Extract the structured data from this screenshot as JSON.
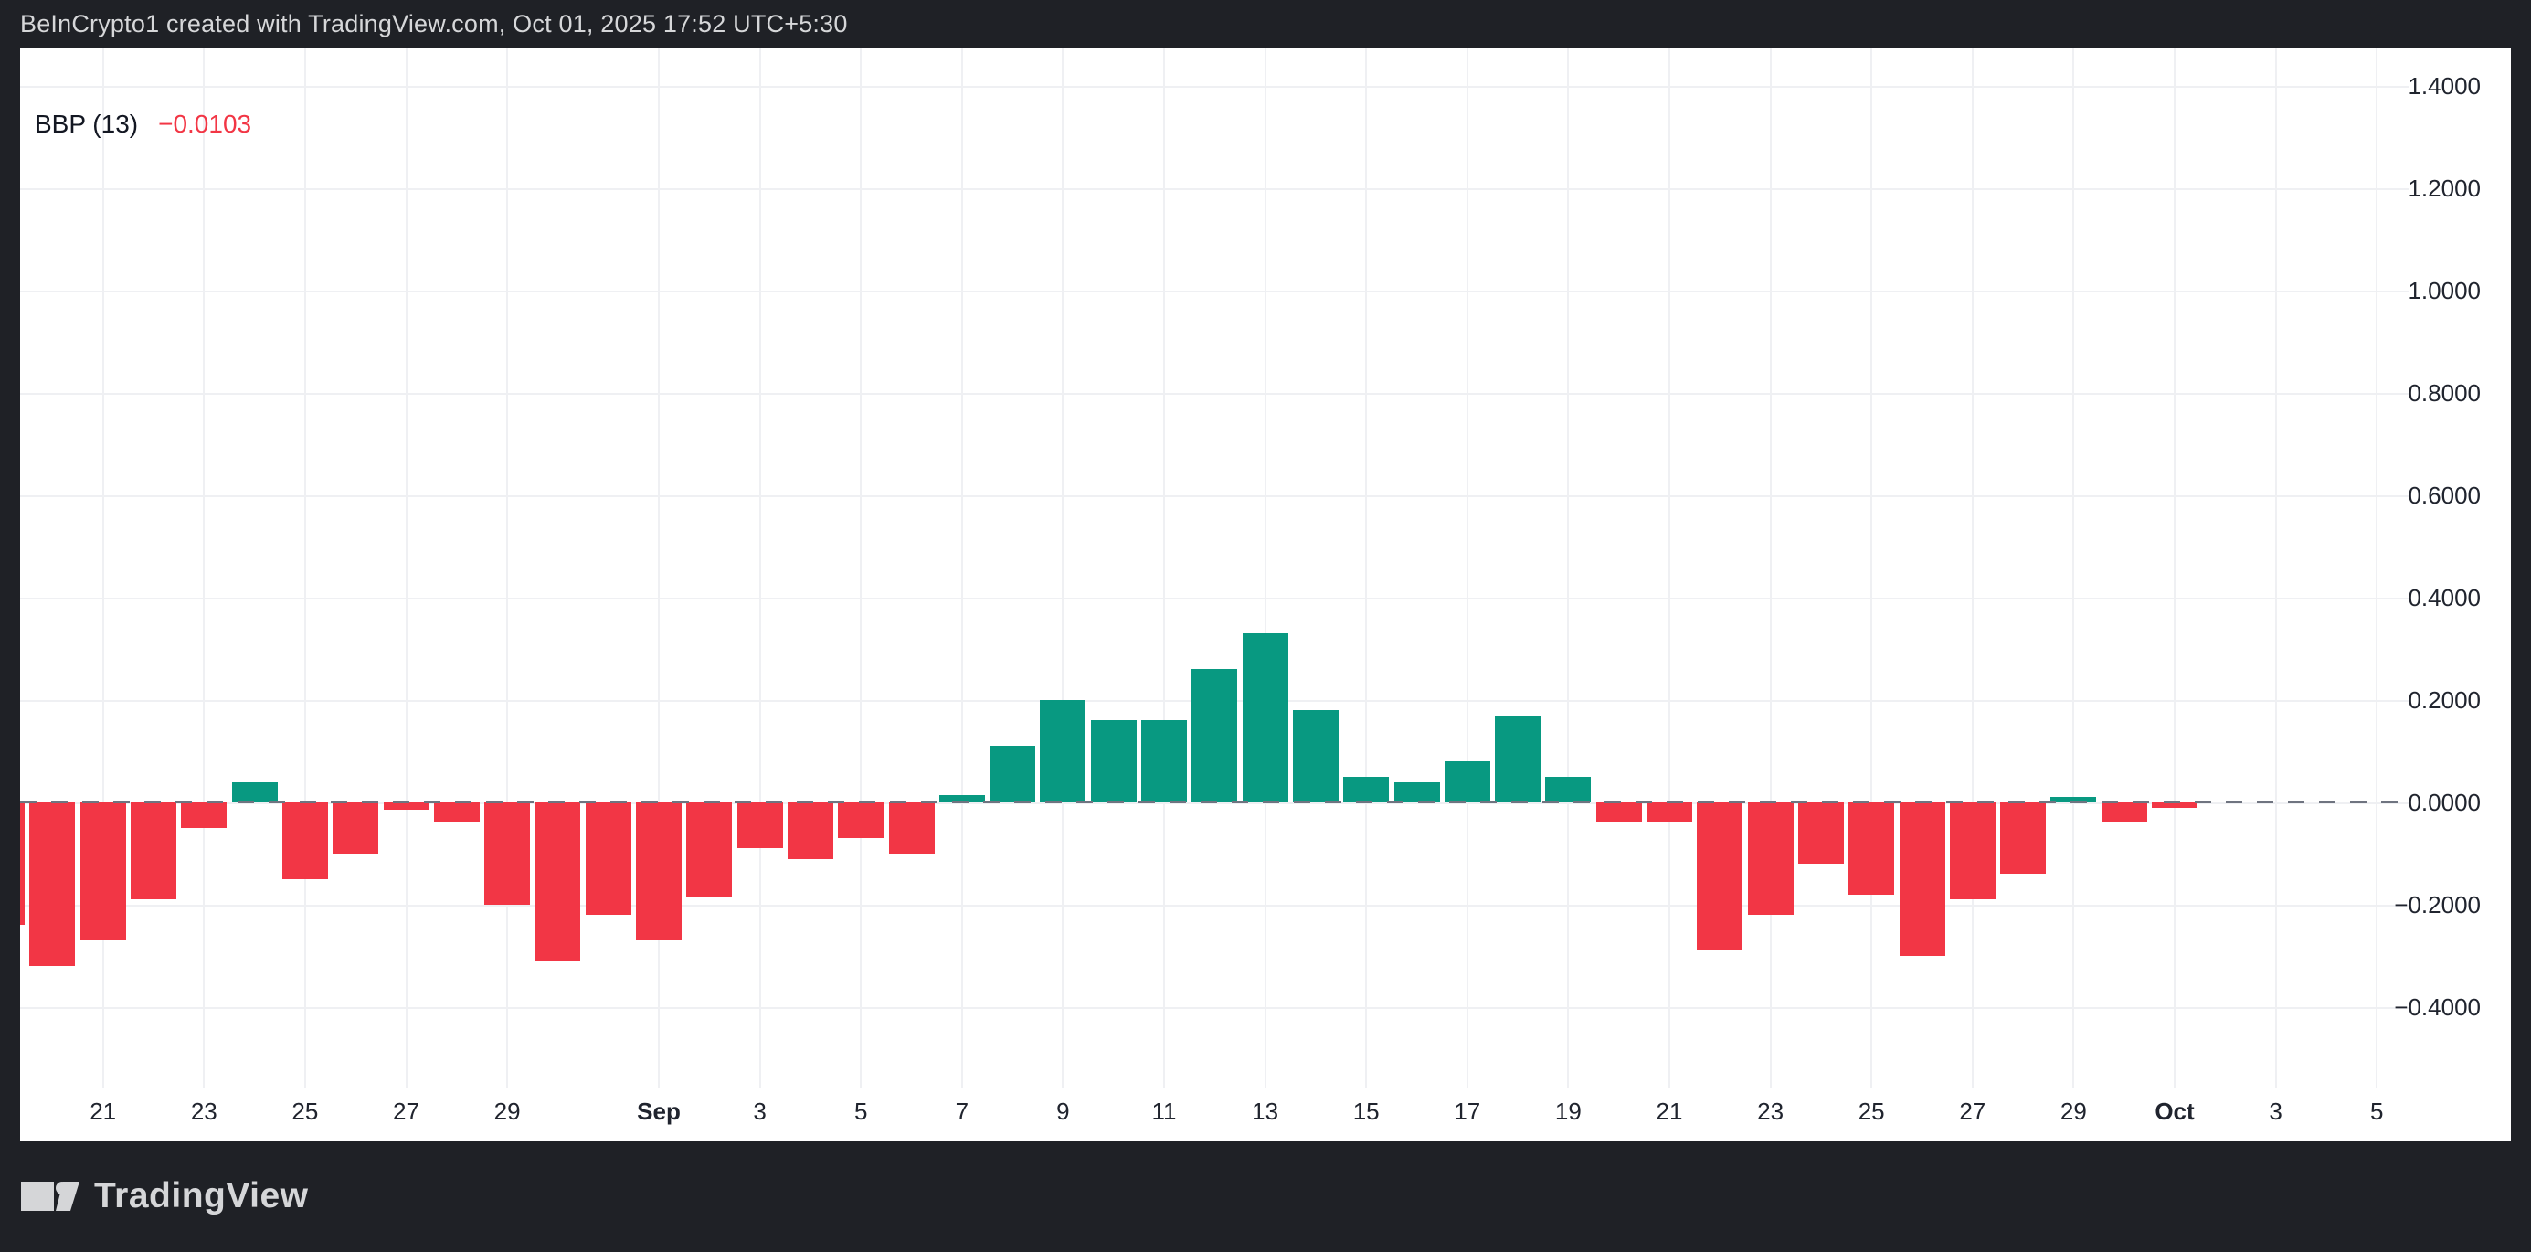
{
  "header": {
    "attribution": "BeInCrypto1 created with TradingView.com, Oct 01, 2025 17:52 UTC+5:30"
  },
  "indicator": {
    "name_label": "BBP (13)",
    "value_label": "−0.0103"
  },
  "footer": {
    "brand": "TradingView"
  },
  "colors": {
    "up": "#089981",
    "down": "#f23645",
    "dashed_zero_line": "#6f7480",
    "grid": "#eff0f3",
    "panel_bg": "#ffffff",
    "frame_bg": "#1f2126",
    "axis_text": "#20242e",
    "header_text": "#d6d7d9",
    "indicator_value_text": "#f23645"
  },
  "chart_data": {
    "type": "bar",
    "title": "BBP (13)",
    "current_value": -0.0103,
    "ylabel": "",
    "xlabel": "",
    "ylim": [
      -0.55,
      1.47
    ],
    "grid": true,
    "zero_line": "dashed",
    "up_color": "#089981",
    "down_color": "#f23645",
    "x": [
      "Aug 19",
      "Aug 20",
      "Aug 21",
      "Aug 22",
      "Aug 23",
      "Aug 24",
      "Aug 25",
      "Aug 26",
      "Aug 27",
      "Aug 28",
      "Aug 29",
      "Aug 30",
      "Aug 31",
      "Sep 1",
      "Sep 2",
      "Sep 3",
      "Sep 4",
      "Sep 5",
      "Sep 6",
      "Sep 7",
      "Sep 8",
      "Sep 9",
      "Sep 10",
      "Sep 11",
      "Sep 12",
      "Sep 13",
      "Sep 14",
      "Sep 15",
      "Sep 16",
      "Sep 17",
      "Sep 18",
      "Sep 19",
      "Sep 20",
      "Sep 21",
      "Sep 22",
      "Sep 23",
      "Sep 24",
      "Sep 25",
      "Sep 26",
      "Sep 27",
      "Sep 28",
      "Sep 29",
      "Sep 30",
      "Oct 1"
    ],
    "values": [
      -0.24,
      -0.32,
      -0.27,
      -0.19,
      -0.05,
      0.04,
      -0.15,
      -0.1,
      -0.015,
      -0.04,
      -0.2,
      -0.31,
      -0.22,
      -0.27,
      -0.185,
      -0.09,
      -0.11,
      -0.07,
      -0.1,
      0.015,
      0.11,
      0.2,
      0.16,
      0.16,
      0.26,
      0.33,
      0.18,
      0.05,
      0.04,
      0.08,
      0.17,
      0.05,
      -0.04,
      -0.04,
      -0.29,
      -0.22,
      -0.12,
      -0.18,
      -0.3,
      -0.19,
      -0.14,
      0.01,
      -0.04,
      -0.0103
    ],
    "future_empty_days": 4,
    "y_ticks": [
      {
        "v": 1.4,
        "label": "1.4000"
      },
      {
        "v": 1.2,
        "label": "1.2000"
      },
      {
        "v": 1.0,
        "label": "1.0000"
      },
      {
        "v": 0.8,
        "label": "0.8000"
      },
      {
        "v": 0.6,
        "label": "0.6000"
      },
      {
        "v": 0.4,
        "label": "0.4000"
      },
      {
        "v": 0.2,
        "label": "0.2000"
      },
      {
        "v": 0.0,
        "label": "0.0000"
      },
      {
        "v": -0.2,
        "label": "−0.2000"
      },
      {
        "v": -0.4,
        "label": "−0.4000"
      }
    ],
    "x_ticks": [
      {
        "label": "21",
        "day": 2,
        "bold": false
      },
      {
        "label": "23",
        "day": 4,
        "bold": false
      },
      {
        "label": "25",
        "day": 6,
        "bold": false
      },
      {
        "label": "27",
        "day": 8,
        "bold": false
      },
      {
        "label": "29",
        "day": 10,
        "bold": false
      },
      {
        "label": "Sep",
        "day": 13,
        "bold": true
      },
      {
        "label": "3",
        "day": 15,
        "bold": false
      },
      {
        "label": "5",
        "day": 17,
        "bold": false
      },
      {
        "label": "7",
        "day": 19,
        "bold": false
      },
      {
        "label": "9",
        "day": 21,
        "bold": false
      },
      {
        "label": "11",
        "day": 23,
        "bold": false
      },
      {
        "label": "13",
        "day": 25,
        "bold": false
      },
      {
        "label": "15",
        "day": 27,
        "bold": false
      },
      {
        "label": "17",
        "day": 29,
        "bold": false
      },
      {
        "label": "19",
        "day": 31,
        "bold": false
      },
      {
        "label": "21",
        "day": 33,
        "bold": false
      },
      {
        "label": "23",
        "day": 35,
        "bold": false
      },
      {
        "label": "25",
        "day": 37,
        "bold": false
      },
      {
        "label": "27",
        "day": 39,
        "bold": false
      },
      {
        "label": "29",
        "day": 41,
        "bold": false
      },
      {
        "label": "Oct",
        "day": 43,
        "bold": true
      },
      {
        "label": "3",
        "day": 45,
        "bold": false
      },
      {
        "label": "5",
        "day": 47,
        "bold": false
      }
    ]
  }
}
